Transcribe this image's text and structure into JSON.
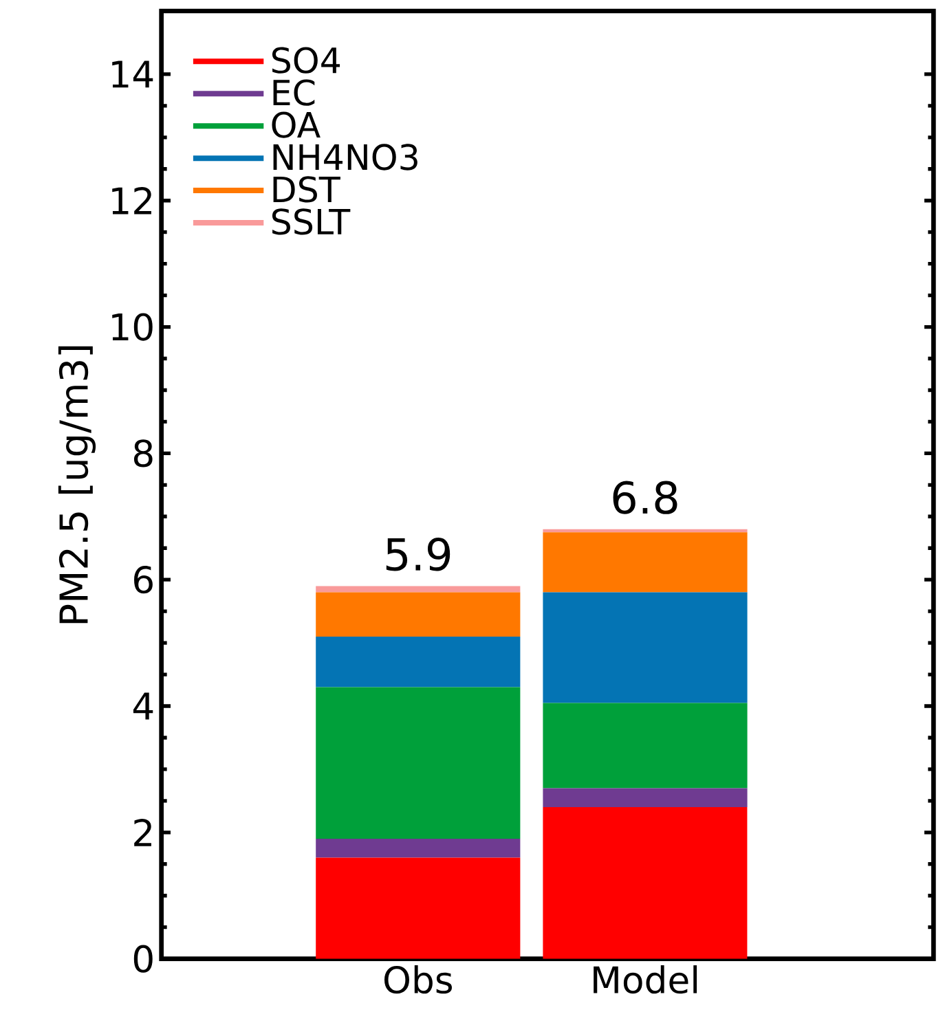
{
  "chart_data": {
    "type": "bar",
    "stacked": true,
    "ylabel": "PM2.5 [ug/m3]",
    "categories": [
      "Obs",
      "Model"
    ],
    "series": [
      {
        "name": "SO4",
        "color": "#ff0000",
        "values": [
          1.6,
          2.4
        ]
      },
      {
        "name": "EC",
        "color": "#6f3b91",
        "values": [
          0.3,
          0.3
        ]
      },
      {
        "name": "OA",
        "color": "#00a03a",
        "values": [
          2.4,
          1.35
        ]
      },
      {
        "name": "NH4NO3",
        "color": "#0474b4",
        "values": [
          0.8,
          1.75
        ]
      },
      {
        "name": "DST",
        "color": "#ff7800",
        "values": [
          0.7,
          0.95
        ]
      },
      {
        "name": "SSLT",
        "color": "#f99a9a",
        "values": [
          0.1,
          0.05
        ]
      }
    ],
    "totals": [
      "5.9",
      "6.8"
    ],
    "ylim": [
      0,
      15
    ],
    "yticks": [
      0,
      2,
      4,
      6,
      8,
      10,
      12,
      14
    ],
    "legend": "top left",
    "grid": false
  }
}
